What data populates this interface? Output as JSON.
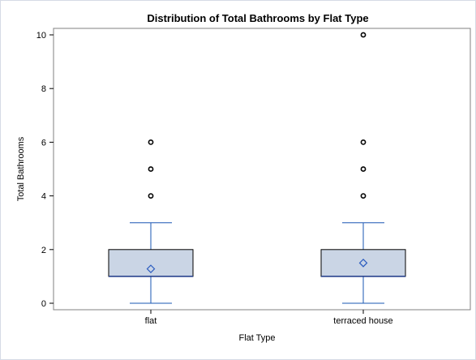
{
  "chart_data": {
    "type": "box",
    "title": "Distribution of Total Bathrooms by Flat Type",
    "xlabel": "Flat Type",
    "ylabel": "Total Bathrooms",
    "ylim": [
      0,
      10
    ],
    "yticks": [
      "0",
      "2",
      "4",
      "6",
      "8",
      "10"
    ],
    "categories": [
      "flat",
      "terraced house"
    ],
    "boxes": [
      {
        "category": "flat",
        "min": 0,
        "q1": 1,
        "median": 1,
        "q3": 2,
        "whisker_high": 3,
        "mean": 1.28,
        "outliers": [
          4,
          5,
          6
        ]
      },
      {
        "category": "terraced house",
        "min": 0,
        "q1": 1,
        "median": 1,
        "q3": 2,
        "whisker_high": 3,
        "mean": 1.5,
        "outliers": [
          4,
          5,
          6,
          10
        ]
      }
    ],
    "grid": false,
    "colors": {
      "box_fill": "#cad5e5",
      "box_edge": "#000000",
      "median": "#1f3a8a",
      "whisker": "#1a57b3",
      "mean_marker": "#2a5bbf",
      "outlier": "#000000",
      "frame": "#808080"
    }
  }
}
